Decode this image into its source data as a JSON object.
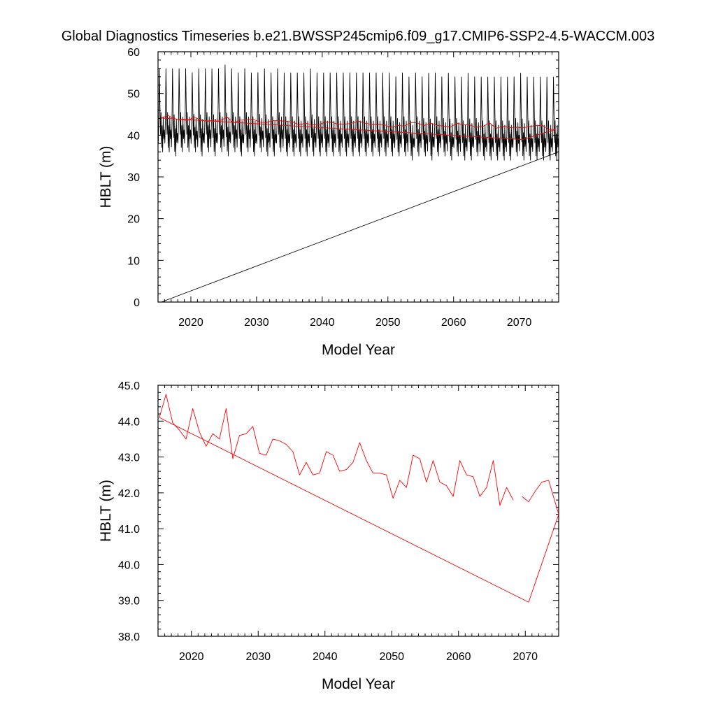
{
  "figure_title": "Global Diagnostics Timeseries b.e21.BWSSP245cmip6.f09_g17.CMIP6-SSP2-4.5-WACCM.003",
  "colors": {
    "annual": "#ff0000",
    "monthly": "#000000"
  },
  "chart_data": [
    {
      "type": "line",
      "title": "Global Diagnostics Timeseries b.e21.BWSSP245cmip6.f09_g17.CMIP6-SSP2-4.5-WACCM.003",
      "xlabel": "Model Year",
      "ylabel": "HBLT (m)",
      "xlim": [
        2015,
        2076
      ],
      "ylim": [
        0,
        60
      ],
      "xticks": [
        2020,
        2030,
        2040,
        2050,
        2060,
        2070
      ],
      "xtick_labels": [
        "2020",
        "2030",
        "2040",
        "2050",
        "2060",
        "2070"
      ],
      "yticks": [
        0,
        10,
        20,
        30,
        40,
        50,
        60
      ],
      "ytick_labels": [
        "0",
        "10",
        "20",
        "30",
        "40",
        "50",
        "60"
      ],
      "grid": false,
      "series": [
        {
          "style": "monthly",
          "description": "monthly global mean, seasonal cycle oscillating between about 34–37 m (minima) and about 53–58 m (maxima)",
          "x_start": 2015.04,
          "x_end": 2075.96,
          "annual_maxima": [
            57,
            57,
            57,
            57,
            57,
            56,
            57,
            57,
            57,
            57,
            58,
            57,
            56,
            57,
            56,
            56,
            57,
            56,
            57,
            56,
            56,
            56,
            56,
            57,
            56,
            56,
            56,
            56,
            56,
            56,
            56,
            56,
            56,
            56,
            56,
            56,
            55,
            56,
            55,
            56,
            55,
            56,
            56,
            55,
            56,
            55,
            55,
            56,
            55,
            55,
            55,
            55,
            55,
            55,
            55,
            56,
            55,
            55,
            55,
            55,
            55
          ],
          "annual_minima": [
            36,
            36,
            35,
            36,
            36,
            36,
            35,
            36,
            35,
            36,
            35,
            36,
            35,
            36,
            35,
            36,
            35,
            35,
            36,
            35,
            35,
            35,
            35,
            35,
            35,
            35,
            35,
            35,
            35,
            35,
            35,
            35,
            35,
            35,
            35,
            35,
            35,
            35,
            34,
            35,
            35,
            34,
            35,
            35,
            34,
            35,
            34,
            34,
            35,
            34,
            34,
            34,
            34,
            34,
            35,
            34,
            34,
            34,
            34,
            34,
            34
          ]
        },
        {
          "style": "drift",
          "description": "straight diagonal line",
          "x": [
            2015.5,
            2076
          ],
          "y": [
            0,
            36
          ]
        },
        {
          "style": "annual",
          "description": "annual means",
          "x": [
            2015.5,
            2016.5,
            2017.5,
            2018.5,
            2019.5,
            2020.5,
            2021.5,
            2022.5,
            2023.5,
            2024.5,
            2025.5,
            2026.5,
            2027.5,
            2028.5,
            2029.5,
            2030.5,
            2031.5,
            2032.5,
            2033.5,
            2034.5,
            2035.5,
            2036.5,
            2037.5,
            2038.5,
            2039.5,
            2040.5,
            2041.5,
            2042.5,
            2043.5,
            2044.5,
            2045.5,
            2046.5,
            2047.5,
            2048.5,
            2049.5,
            2050.5,
            2051.5,
            2052.5,
            2053.5,
            2054.5,
            2055.5,
            2056.5,
            2057.5,
            2058.5,
            2059.5,
            2060.5,
            2061.5,
            2062.5,
            2063.5,
            2064.5,
            2065.5,
            2066.5,
            2067.5,
            2068.5,
            2069.5,
            2070.5,
            2071.5,
            2072.5,
            2073.5,
            2074.5,
            2075.5,
            2070.5,
            2015.5
          ],
          "y": [
            44.1,
            44.75,
            43.95,
            43.75,
            43.5,
            44.35,
            43.7,
            43.3,
            43.65,
            43.5,
            44.35,
            42.95,
            43.6,
            43.65,
            43.85,
            43.1,
            43.05,
            43.5,
            43.45,
            43.35,
            43.15,
            42.5,
            42.85,
            42.5,
            42.55,
            43.15,
            43.05,
            42.6,
            42.65,
            42.85,
            43.4,
            42.9,
            42.55,
            42.55,
            42.5,
            41.85,
            42.35,
            42.15,
            43.05,
            42.95,
            42.3,
            42.9,
            42.3,
            42.2,
            41.9,
            42.9,
            42.5,
            42.45,
            41.9,
            42.15,
            42.9,
            41.65,
            42.15,
            41.8,
            41.9,
            41.75,
            42.05,
            42.3,
            42.35,
            41.4,
            41.35,
            38.95,
            44.1
          ]
        }
      ]
    },
    {
      "type": "line",
      "title": "",
      "xlabel": "Model Year",
      "ylabel": "HBLT (m)",
      "xlim": [
        2015,
        2075
      ],
      "ylim": [
        38,
        45
      ],
      "xticks": [
        2020,
        2030,
        2040,
        2050,
        2060,
        2070
      ],
      "xtick_labels": [
        "2020",
        "2030",
        "2040",
        "2050",
        "2060",
        "2070"
      ],
      "yticks": [
        38,
        39,
        40,
        41,
        42,
        43,
        44,
        45
      ],
      "ytick_labels": [
        "38.0",
        "39.0",
        "40.0",
        "41.0",
        "42.0",
        "43.0",
        "44.0",
        "45.0"
      ],
      "grid": false,
      "series": [
        {
          "style": "annual",
          "description": "annual means",
          "x": [
            2015.2,
            2016.2,
            2017.2,
            2018.2,
            2019.2,
            2020.2,
            2021.2,
            2022.2,
            2023.2,
            2024.2,
            2025.2,
            2026.2,
            2027.2,
            2028.2,
            2029.2,
            2030.2,
            2031.2,
            2032.2,
            2033.2,
            2034.2,
            2035.2,
            2036.2,
            2037.2,
            2038.2,
            2039.2,
            2040.2,
            2041.2,
            2042.2,
            2043.2,
            2044.2,
            2045.2,
            2046.2,
            2047.2,
            2048.2,
            2049.2,
            2050.2,
            2051.2,
            2052.2,
            2053.2,
            2054.2,
            2055.2,
            2056.2,
            2057.2,
            2058.2,
            2059.2,
            2060.2,
            2061.2,
            2062.2,
            2063.2,
            2064.2,
            2065.2,
            2066.2,
            2067.2,
            2068.2
          ],
          "y": [
            44.1,
            44.75,
            43.95,
            43.75,
            43.5,
            44.35,
            43.7,
            43.3,
            43.65,
            43.5,
            44.35,
            42.95,
            43.6,
            43.65,
            43.85,
            43.1,
            43.05,
            43.5,
            43.45,
            43.35,
            43.15,
            42.5,
            42.85,
            42.5,
            42.55,
            43.15,
            43.05,
            42.6,
            42.65,
            42.85,
            43.4,
            42.9,
            42.55,
            42.55,
            42.5,
            41.85,
            42.35,
            42.15,
            43.05,
            42.95,
            42.3,
            42.9,
            42.3,
            42.2,
            41.9,
            42.9,
            42.5,
            42.45,
            41.9,
            42.15,
            42.9,
            41.65,
            42.15,
            41.8
          ]
        },
        {
          "style": "annual",
          "description": "annual means continued and closing segment",
          "x": [
            2069.5,
            2070.5,
            2071.5,
            2072.5,
            2073.5,
            2075,
            2070.5,
            2015.2
          ],
          "y": [
            41.9,
            41.75,
            42.05,
            42.3,
            42.35,
            41.4,
            38.95,
            44.1
          ]
        }
      ]
    }
  ]
}
